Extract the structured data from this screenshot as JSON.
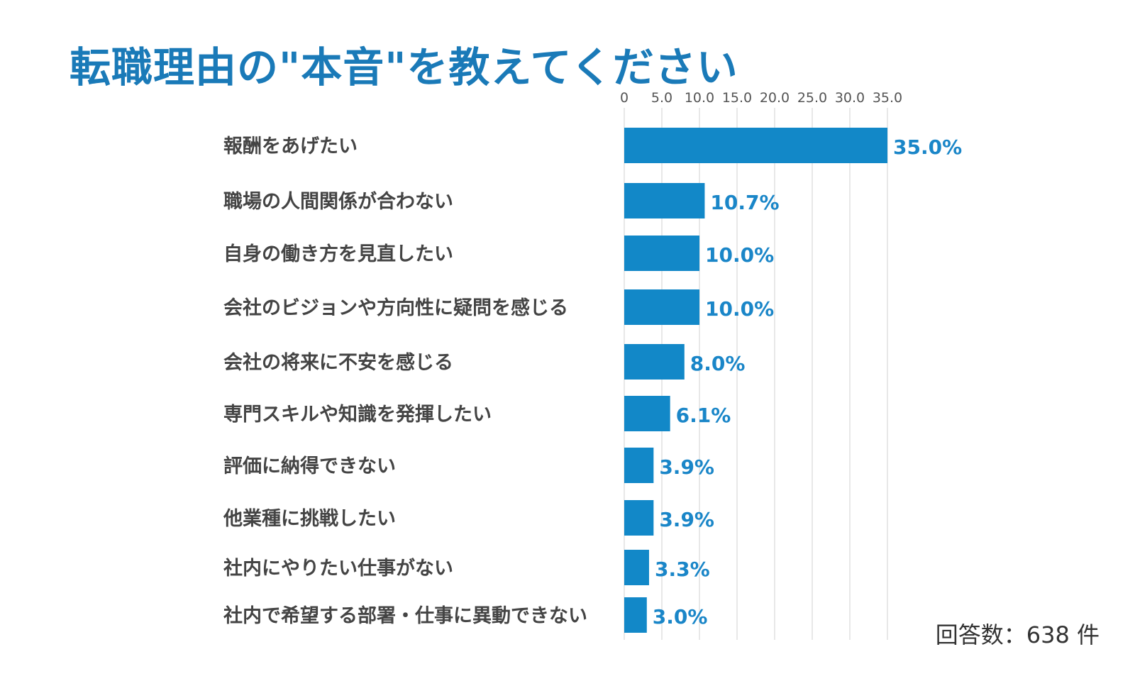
{
  "title": "転職理由の\"本音\"を教えてください",
  "response_count": "回答数：638 件",
  "colors": {
    "bar": "#1288c8",
    "title": "#1a7ab8",
    "value_label": "#1a86c8",
    "grid": "#d0d0d0"
  },
  "chart_data": {
    "type": "bar",
    "orientation": "horizontal",
    "title": "転職理由の\"本音\"を教えてください",
    "categories": [
      "報酬をあげたい",
      "職場の人間関係が合わない",
      "自身の働き方を見直したい",
      "会社のビジョンや方向性に疑問を感じる",
      "会社の将来に不安を感じる",
      "専門スキルや知識を発揮したい",
      "評価に納得できない",
      "他業種に挑戦したい",
      "社内にやりたい仕事がない",
      "社内で希望する部署・仕事に異動できない"
    ],
    "values": [
      35.0,
      10.7,
      10.0,
      10.0,
      8.0,
      6.1,
      3.9,
      3.9,
      3.3,
      3.0
    ],
    "value_labels": [
      "35.0%",
      "10.7%",
      "10.0%",
      "10.0%",
      "8.0%",
      "6.1%",
      "3.9%",
      "3.9%",
      "3.3%",
      "3.0%"
    ],
    "x_ticks": [
      0,
      5,
      10,
      15,
      20,
      25,
      30,
      35
    ],
    "x_tick_labels": [
      "0",
      "5.0",
      "10.0",
      "15.0",
      "20.0",
      "25.0",
      "30.0",
      "35.0"
    ],
    "xlim": [
      0,
      35
    ],
    "grid": true,
    "axis_position": "top"
  }
}
